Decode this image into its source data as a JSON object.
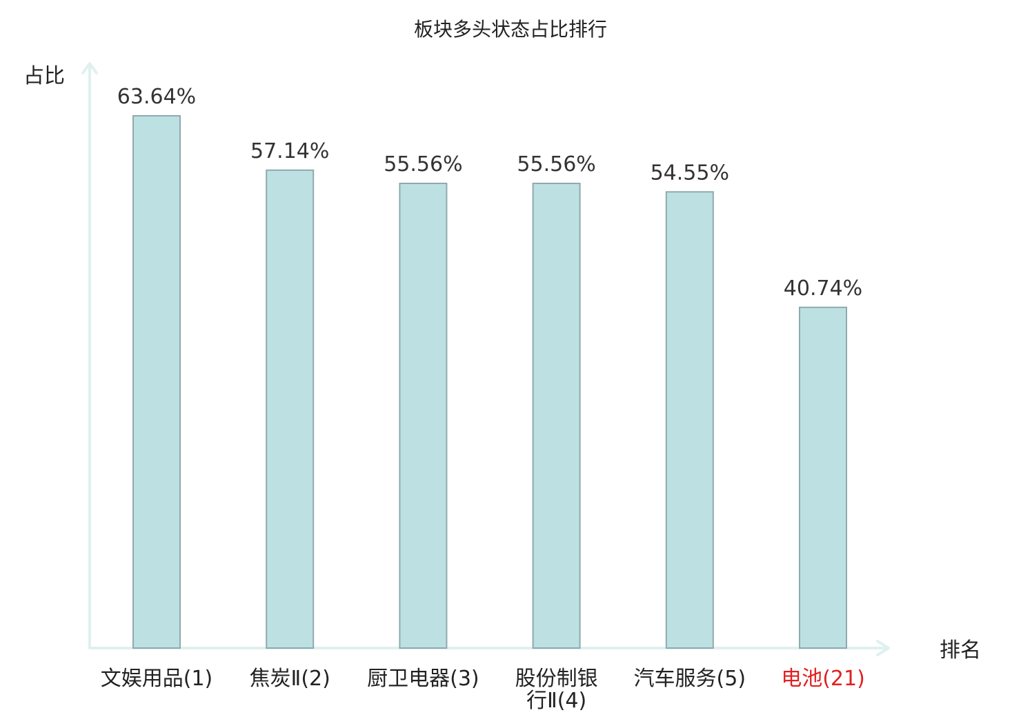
{
  "colors": {
    "bar_fill": "#bde0e3",
    "bar_stroke": "#8faaad",
    "axis": "#dff1ef",
    "highlight": "#e02020"
  },
  "chart_data": {
    "type": "bar",
    "title": "板块多头状态占比排行",
    "xlabel": "排名",
    "ylabel": "占比",
    "categories": [
      "文娱用品(1)",
      "焦炭Ⅱ(2)",
      "厨卫电器(3)",
      "股份制银行Ⅱ(4)",
      "汽车服务(5)",
      "电池(21)"
    ],
    "values": [
      63.64,
      57.14,
      55.56,
      55.56,
      54.55,
      40.74
    ],
    "value_labels": [
      "63.64%",
      "57.14%",
      "55.56%",
      "55.56%",
      "54.55%",
      "40.74%"
    ],
    "highlight_index": 5,
    "ylim": [
      0,
      70
    ],
    "grid": false,
    "legend": "none"
  }
}
